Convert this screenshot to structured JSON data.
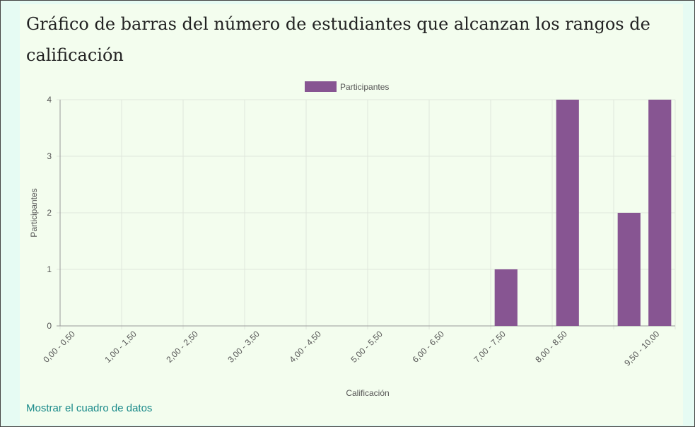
{
  "chart_data": {
    "type": "bar",
    "title": "Gráfico de barras del número de estudiantes que alcanzan los rangos de calificación",
    "categories": [
      "0,00 - 0,50",
      null,
      "1,00 - 1,50",
      null,
      "2,00 - 2,50",
      null,
      "3,00 - 3,50",
      null,
      "4,00 - 4,50",
      null,
      "5,00 - 5,50",
      null,
      "6,00 - 6,50",
      null,
      "7,00 - 7,50",
      null,
      "8,00 - 8,50",
      null,
      null,
      "9,50 - 10,00"
    ],
    "series": [
      {
        "name": "Participantes",
        "color": "#875592",
        "values": [
          0,
          0,
          0,
          0,
          0,
          0,
          0,
          0,
          0,
          0,
          0,
          0,
          0,
          0,
          1,
          0,
          4,
          0,
          2,
          4
        ]
      }
    ],
    "x_label": "Calificación",
    "y_label": "Participantes",
    "ylim": [
      0,
      4
    ],
    "yticks": [
      0,
      1,
      2,
      3,
      4
    ],
    "grid": true,
    "legend": "top"
  },
  "link": "Mostrar el cuadro de datos"
}
